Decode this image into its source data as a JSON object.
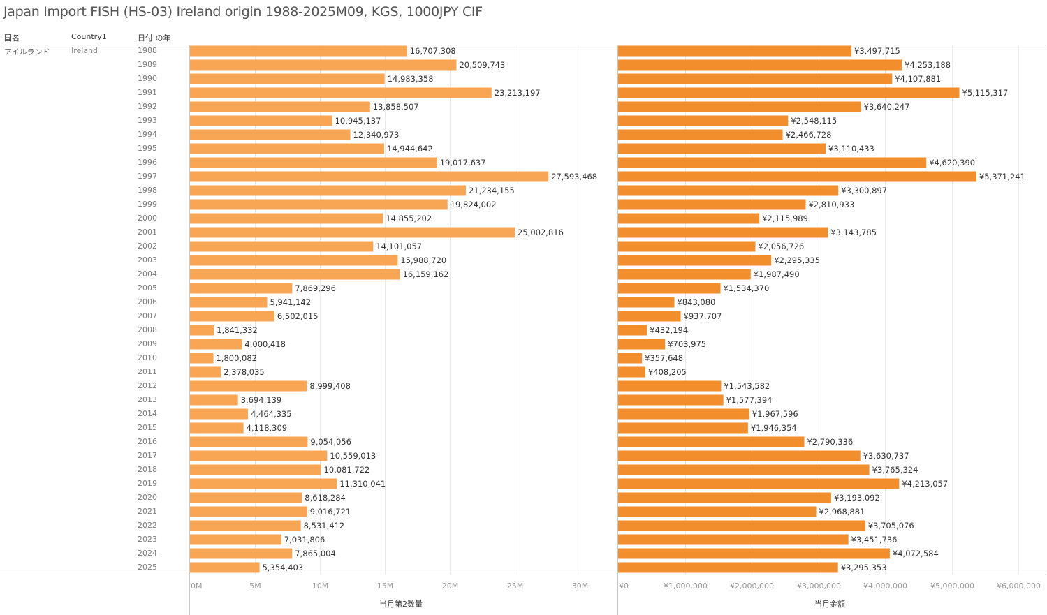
{
  "title": "Japan Import FISH (HS-03) Ireland origin 1988-2025M09, KGS, 1000JPY CIF",
  "headers": {
    "country_jp": "国名",
    "country_en": "Country1",
    "year": "日付 の年"
  },
  "row_labels": {
    "country_jp": "アイルランド",
    "country_en": "Ireland"
  },
  "colors": {
    "quantity_bar": "#F8A654",
    "value_bar": "#F28E2B",
    "label_text": "#333333",
    "tick_text": "#999999",
    "gridline": "#EBEBEB",
    "border": "#C8C8C8"
  },
  "chart_data": [
    {
      "type": "bar",
      "orientation": "horizontal",
      "name": "quantity",
      "xlabel": "当月第2数量",
      "ylabel": "日付 の年",
      "xlim": [
        0,
        33000000
      ],
      "x_ticks": [
        0,
        5000000,
        10000000,
        15000000,
        20000000,
        25000000,
        30000000
      ],
      "x_tick_labels": [
        "0M",
        "5M",
        "10M",
        "15M",
        "20M",
        "25M",
        "30M"
      ],
      "grid": true,
      "categories": [
        "1988",
        "1989",
        "1990",
        "1991",
        "1992",
        "1993",
        "1994",
        "1995",
        "1996",
        "1997",
        "1998",
        "1999",
        "2000",
        "2001",
        "2002",
        "2003",
        "2004",
        "2005",
        "2006",
        "2007",
        "2008",
        "2009",
        "2010",
        "2011",
        "2012",
        "2013",
        "2014",
        "2015",
        "2016",
        "2017",
        "2018",
        "2019",
        "2020",
        "2021",
        "2022",
        "2023",
        "2024",
        "2025"
      ],
      "values": [
        16707308,
        20509743,
        14983358,
        23213197,
        13858507,
        10945137,
        12340973,
        14944642,
        19017637,
        27593468,
        21234155,
        19824002,
        14855202,
        25002816,
        14101057,
        15988720,
        16159162,
        7869296,
        5941142,
        6502015,
        1841332,
        4000418,
        1800082,
        2378035,
        8999408,
        3694139,
        4464335,
        4118309,
        9054056,
        10559013,
        10081722,
        11310041,
        8618284,
        9016721,
        8531412,
        7031806,
        7865004,
        5354403
      ],
      "value_labels": [
        "16,707,308",
        "20,509,743",
        "14,983,358",
        "23,213,197",
        "13,858,507",
        "10,945,137",
        "12,340,973",
        "14,944,642",
        "19,017,637",
        "27,593,468",
        "21,234,155",
        "19,824,002",
        "14,855,202",
        "25,002,816",
        "14,101,057",
        "15,988,720",
        "16,159,162",
        "7,869,296",
        "5,941,142",
        "6,502,015",
        "1,841,332",
        "4,000,418",
        "1,800,082",
        "2,378,035",
        "8,999,408",
        "3,694,139",
        "4,464,335",
        "4,118,309",
        "9,054,056",
        "10,559,013",
        "10,081,722",
        "11,310,041",
        "8,618,284",
        "9,016,721",
        "8,531,412",
        "7,031,806",
        "7,865,004",
        "5,354,403"
      ]
    },
    {
      "type": "bar",
      "orientation": "horizontal",
      "name": "value",
      "xlabel": "当月金額",
      "ylabel": "日付 の年",
      "xlim": [
        0,
        6400000
      ],
      "x_ticks": [
        0,
        1000000,
        2000000,
        3000000,
        4000000,
        5000000,
        6000000
      ],
      "x_tick_labels": [
        "¥0",
        "¥1,000,000",
        "¥2,000,000",
        "¥3,000,000",
        "¥4,000,000",
        "¥5,000,000",
        "¥6,000,000"
      ],
      "grid": true,
      "categories": [
        "1988",
        "1989",
        "1990",
        "1991",
        "1992",
        "1993",
        "1994",
        "1995",
        "1996",
        "1997",
        "1998",
        "1999",
        "2000",
        "2001",
        "2002",
        "2003",
        "2004",
        "2005",
        "2006",
        "2007",
        "2008",
        "2009",
        "2010",
        "2011",
        "2012",
        "2013",
        "2014",
        "2015",
        "2016",
        "2017",
        "2018",
        "2019",
        "2020",
        "2021",
        "2022",
        "2023",
        "2024",
        "2025"
      ],
      "values": [
        3497715,
        4253188,
        4107881,
        5115317,
        3640247,
        2548115,
        2466728,
        3110433,
        4620390,
        5371241,
        3300897,
        2810933,
        2115989,
        3143785,
        2056726,
        2295335,
        1987490,
        1534370,
        843080,
        937707,
        432194,
        703975,
        357648,
        408205,
        1543582,
        1577394,
        1967596,
        1946354,
        2790336,
        3630737,
        3765324,
        4213057,
        3193092,
        2968881,
        3705076,
        3451736,
        4072584,
        3295353
      ],
      "value_labels": [
        "¥3,497,715",
        "¥4,253,188",
        "¥4,107,881",
        "¥5,115,317",
        "¥3,640,247",
        "¥2,548,115",
        "¥2,466,728",
        "¥3,110,433",
        "¥4,620,390",
        "¥5,371,241",
        "¥3,300,897",
        "¥2,810,933",
        "¥2,115,989",
        "¥3,143,785",
        "¥2,056,726",
        "¥2,295,335",
        "¥1,987,490",
        "¥1,534,370",
        "¥843,080",
        "¥937,707",
        "¥432,194",
        "¥703,975",
        "¥357,648",
        "¥408,205",
        "¥1,543,582",
        "¥1,577,394",
        "¥1,967,596",
        "¥1,946,354",
        "¥2,790,336",
        "¥3,630,737",
        "¥3,765,324",
        "¥4,213,057",
        "¥3,193,092",
        "¥2,968,881",
        "¥3,705,076",
        "¥3,451,736",
        "¥4,072,584",
        "¥3,295,353"
      ]
    }
  ]
}
